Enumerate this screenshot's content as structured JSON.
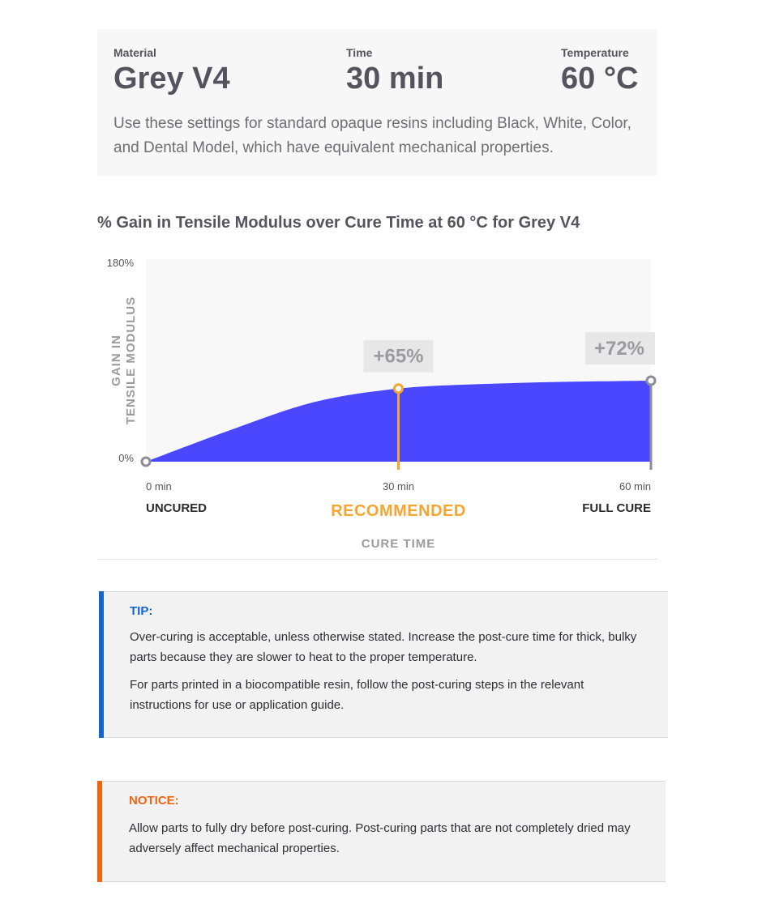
{
  "settings": {
    "material_label": "Material",
    "material_value": "Grey V4",
    "time_label": "Time",
    "time_value": "30 min",
    "temperature_label": "Temperature",
    "temperature_value": "60 °C",
    "description": "Use these settings for standard opaque resins including Black, White, Color, and Dental Model, which have equivalent mechanical properties."
  },
  "chart_data": {
    "type": "area",
    "title": "% Gain in Tensile Modulus over Cure Time at 60 °C for Grey V4",
    "ylabel_lines": [
      "GAIN IN",
      "TENSILE MODULUS"
    ],
    "xlabel": "CURE TIME",
    "ylim": [
      0,
      180
    ],
    "y_tick_labels": [
      "180%",
      "0%"
    ],
    "xlim": [
      0,
      60
    ],
    "x": [
      0,
      10,
      20,
      30,
      40,
      50,
      60
    ],
    "values": [
      0,
      28,
      53,
      65,
      69,
      71,
      72
    ],
    "x_tick_labels": [
      "0 min",
      "30 min",
      "60 min"
    ],
    "x_stage_labels": [
      "UNCURED",
      "RECOMMENDED",
      "FULL CURE"
    ],
    "annotations": [
      {
        "x": 30,
        "y": 65,
        "text": "+65%"
      },
      {
        "x": 60,
        "y": 72,
        "text": "+72%"
      }
    ],
    "colors": {
      "fill": "#4a47ff",
      "plot_bg": "#f8f8f8",
      "recommended": "#f7a531",
      "marker": "#8e8d96",
      "annotation_bg": "#e7e7e7",
      "annotation_text": "#9b9aa1"
    }
  },
  "tip": {
    "title": "TIP:",
    "paragraph1": "Over-curing is acceptable, unless otherwise stated. Increase the post-cure time for thick, bulky parts because they are slower to heat to the proper temperature.",
    "paragraph2": "For parts printed in a biocompatible resin, follow the post-curing steps in the relevant instructions for use or application guide."
  },
  "notice": {
    "title": "NOTICE:",
    "paragraph1": "Allow parts to fully dry before post-curing. Post-curing parts that are not completely dried may adversely affect mechanical properties."
  }
}
